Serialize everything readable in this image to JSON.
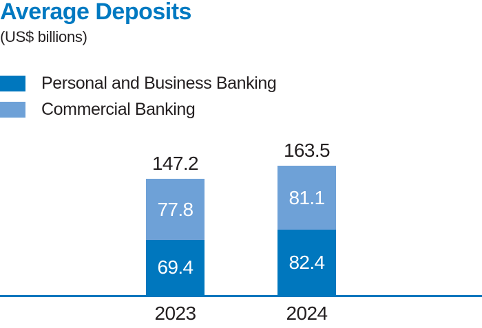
{
  "chart_data": {
    "type": "bar",
    "stacked": true,
    "title": "Average Deposits",
    "subtitle": "(US$ billions)",
    "categories": [
      "2023",
      "2024"
    ],
    "series": [
      {
        "name": "Personal and Business Banking",
        "values": [
          69.4,
          82.4
        ],
        "color": "#0077BE"
      },
      {
        "name": "Commercial Banking",
        "values": [
          77.8,
          81.1
        ],
        "color": "#6EA1D7"
      }
    ],
    "totals": [
      147.2,
      163.5
    ],
    "legend_position": "top-left",
    "grid": false,
    "colors": {
      "title": "#0079C1",
      "text": "#231F20",
      "in_bar_value": "#FFFFFF",
      "axis_line": "#0077BE",
      "background": "#FFFFFF"
    }
  }
}
